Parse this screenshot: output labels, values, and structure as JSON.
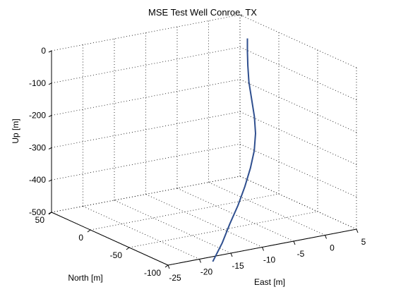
{
  "chart_data": {
    "type": "line",
    "projection": "3d",
    "title": "MSE Test Well Conroe, TX",
    "xlabel": "East [m]",
    "ylabel": "North [m]",
    "zlabel": "Up [m]",
    "xlim": [
      -25,
      5
    ],
    "ylim": [
      -100,
      50
    ],
    "zlim": [
      -500,
      0
    ],
    "xticks": [
      "-25",
      "-20",
      "-15",
      "-10",
      "-5",
      "0",
      "5"
    ],
    "yticks": [
      "-100",
      "-50",
      "0",
      "50"
    ],
    "zticks": [
      "-500",
      "-400",
      "-300",
      "-200",
      "-100",
      "0"
    ],
    "grid": true,
    "series": [
      {
        "color": "#2f4f8f",
        "points": [
          {
            "east": 0.0,
            "north": 0.0,
            "up": 0
          },
          {
            "east": 0.0,
            "north": 0.0,
            "up": -40
          },
          {
            "east": -0.3,
            "north": -3,
            "up": -80
          },
          {
            "east": -1.0,
            "north": -10,
            "up": -120
          },
          {
            "east": -1.8,
            "north": -20,
            "up": -160
          },
          {
            "east": -2.6,
            "north": -30,
            "up": -200
          },
          {
            "east": -3.4,
            "north": -38,
            "up": -240
          },
          {
            "east": -4.6,
            "north": -46,
            "up": -280
          },
          {
            "east": -6.2,
            "north": -54,
            "up": -320
          },
          {
            "east": -8.2,
            "north": -63,
            "up": -360
          },
          {
            "east": -10.4,
            "north": -72,
            "up": -400
          },
          {
            "east": -12.7,
            "north": -80,
            "up": -440
          },
          {
            "east": -15.0,
            "north": -89,
            "up": -480
          },
          {
            "east": -17.5,
            "north": -97,
            "up": -520
          }
        ]
      }
    ]
  }
}
